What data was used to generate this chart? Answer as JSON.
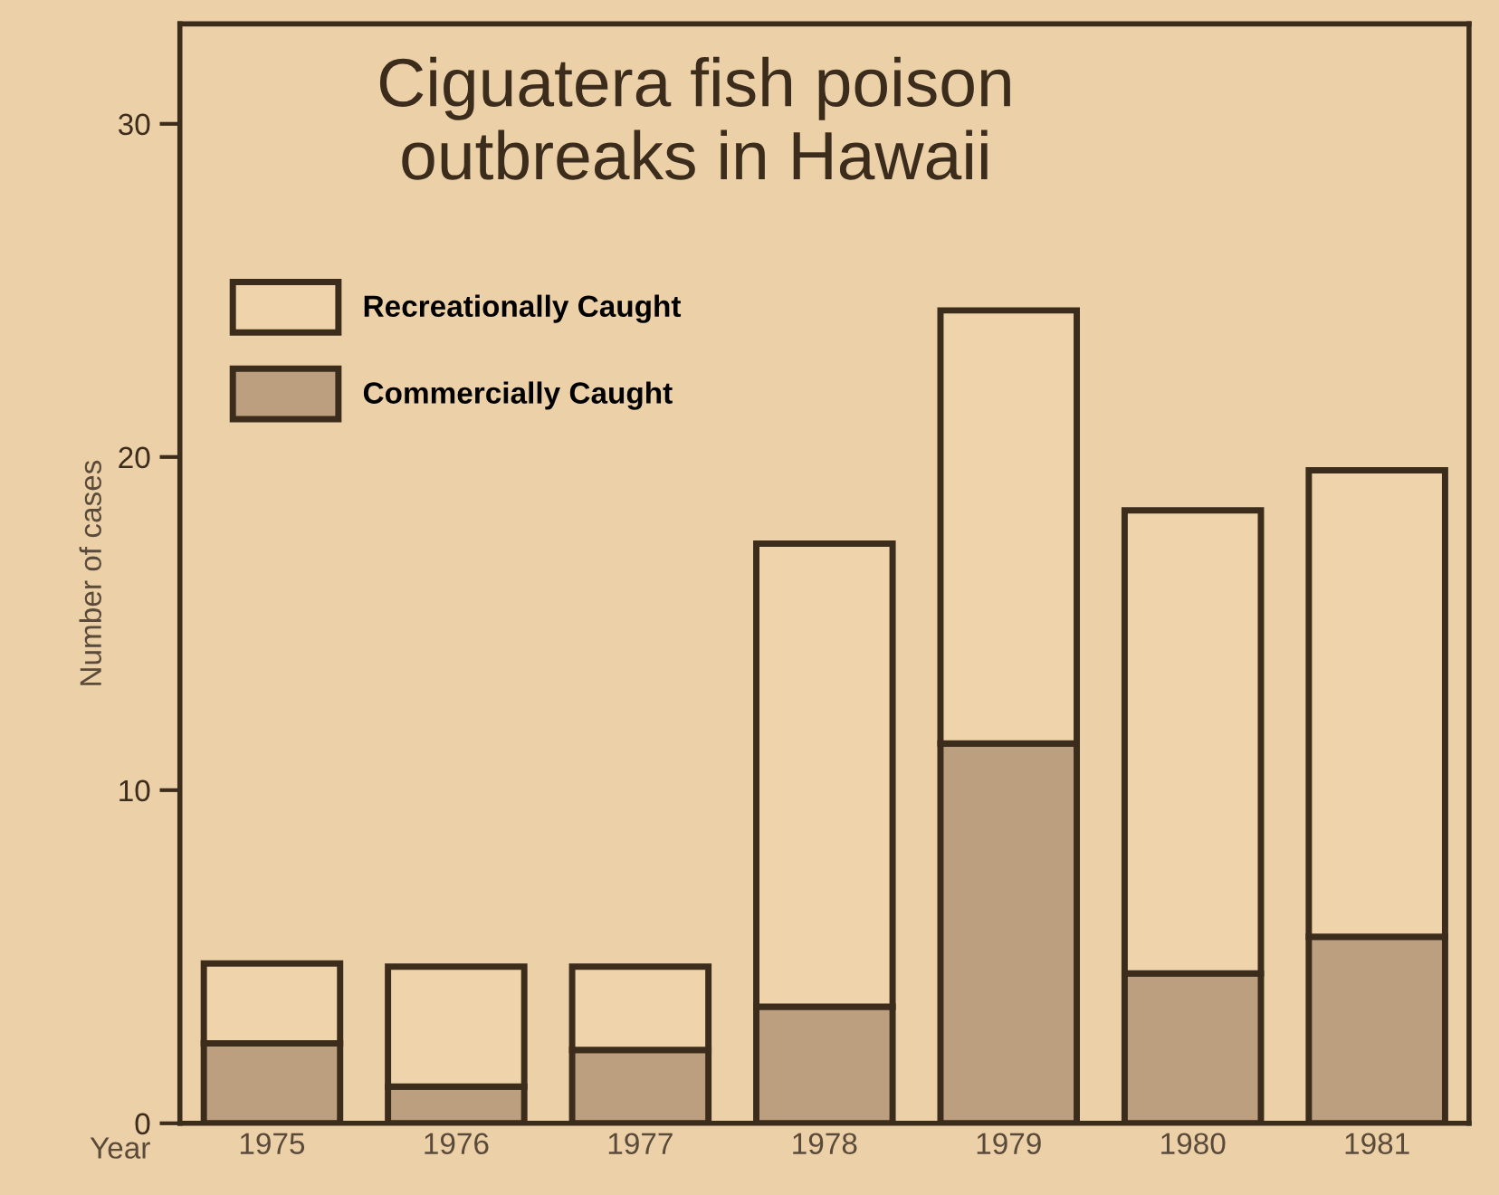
{
  "chart_data": {
    "type": "bar",
    "title": "Ciguatera fish poison\noutbreaks in Hawaii",
    "xlabel": "Year",
    "ylabel": "Number of cases",
    "categories": [
      "1975",
      "1976",
      "1977",
      "1978",
      "1979",
      "1980",
      "1981"
    ],
    "stacked": true,
    "series": [
      {
        "name": "Commercially Caught",
        "color": "#bb9f7e",
        "values": [
          2.4,
          1.1,
          2.2,
          3.5,
          11.4,
          4.5,
          5.6
        ]
      },
      {
        "name": "Recreationally Caught",
        "color": "#efd3aa",
        "values": [
          2.4,
          3.6,
          2.5,
          13.9,
          13.0,
          13.9,
          14.0
        ]
      }
    ],
    "ylim": [
      0,
      33
    ],
    "yticks": [
      0,
      10,
      20,
      30
    ],
    "grid": false,
    "legend": "top left"
  }
}
